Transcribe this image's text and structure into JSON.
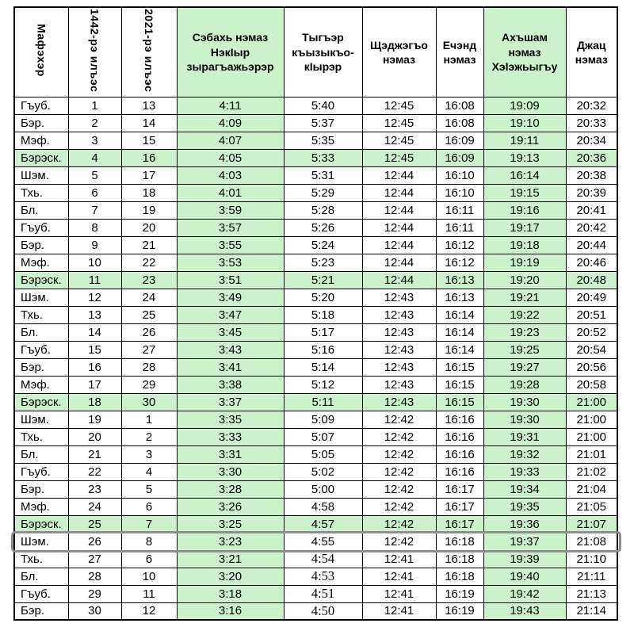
{
  "colors": {
    "highlight_green": "#ccf2cc",
    "row_outline_gray": "#8f8f8f",
    "table_border": "#000000"
  },
  "table": {
    "columns": [
      {
        "id": "day",
        "label": "Мафэхэр",
        "vertical": true,
        "green": false
      },
      {
        "id": "hijri",
        "label": "1442-рэ илъэс",
        "vertical": true,
        "green": false
      },
      {
        "id": "greg",
        "label": "2021-рэ илъэс",
        "vertical": true,
        "green": false
      },
      {
        "id": "fajr",
        "label": "Сэбахь нэмаз\nНэкIыр\nзырагъажьэрэр",
        "vertical": false,
        "green": true
      },
      {
        "id": "sunrise",
        "label": "Тыгъэр\nкъызыкъо-\nкIырэр",
        "vertical": false,
        "green": false
      },
      {
        "id": "dhuhr",
        "label": "Щэджэгъо\nнэмаз",
        "vertical": false,
        "green": false
      },
      {
        "id": "asr",
        "label": "Ечэнд\nнэмаз",
        "vertical": false,
        "green": false
      },
      {
        "id": "maghrib",
        "label": "Ахъшам\nнэмаз\nХэIэжьыгъу",
        "vertical": false,
        "green": true
      },
      {
        "id": "isha",
        "label": "Джац\nнэмаз",
        "vertical": false,
        "green": false
      }
    ],
    "rows": [
      [
        "Гъуб.",
        "1",
        "13",
        "4:11",
        "5:40",
        "12:45",
        "16:08",
        "19:09",
        "20:32"
      ],
      [
        "Бэр.",
        "2",
        "14",
        "4:09",
        "5:37",
        "12:45",
        "16:08",
        "19:10",
        "20:33"
      ],
      [
        "Мэф.",
        "3",
        "15",
        "4:07",
        "5:35",
        "12:45",
        "16:09",
        "19:11",
        "20:34"
      ],
      [
        "Бэрэск.",
        "4",
        "16",
        "4:05",
        "5:33",
        "12:45",
        "16:09",
        "19:13",
        "20:36"
      ],
      [
        "Шэм.",
        "5",
        "17",
        "4:03",
        "5:31",
        "12:44",
        "16:10",
        "16:14",
        "20:38"
      ],
      [
        "Тхь.",
        "6",
        "18",
        "4:01",
        "5:29",
        "12:44",
        "16:10",
        "19:15",
        "20:39"
      ],
      [
        "Бл.",
        "7",
        "19",
        "3:59",
        "5:28",
        "12:44",
        "16:11",
        "19:16",
        "20:41"
      ],
      [
        "Гъуб.",
        "8",
        "20",
        "3:57",
        "5:26",
        "12:44",
        "16:11",
        "19:17",
        "20:42"
      ],
      [
        "Бэр.",
        "9",
        "21",
        "3:55",
        "5:24",
        "12:44",
        "16:12",
        "19:18",
        "20:44"
      ],
      [
        "Мэф.",
        "10",
        "22",
        "3:53",
        "5:23",
        "12:44",
        "16:12",
        "19:19",
        "20:46"
      ],
      [
        "Бэрэск.",
        "11",
        "23",
        "3:51",
        "5:21",
        "12:44",
        "16:13",
        "19:20",
        "20:48"
      ],
      [
        "Шэм.",
        "12",
        "24",
        "3:49",
        "5:20",
        "12:43",
        "16:13",
        "19:21",
        "20:49"
      ],
      [
        "Тхь.",
        "13",
        "25",
        "3:47",
        "5:18",
        "12:43",
        "16:14",
        "19:22",
        "20:51"
      ],
      [
        "Бл.",
        "14",
        "26",
        "3:45",
        "5:17",
        "12:43",
        "16:14",
        "19:23",
        "20:52"
      ],
      [
        "Гъуб.",
        "15",
        "27",
        "3:43",
        "5:16",
        "12:43",
        "16:14",
        "19:25",
        "20:54"
      ],
      [
        "Бэр.",
        "16",
        "28",
        "3:41",
        "5:14",
        "12:43",
        "16:15",
        "19:27",
        "20:56"
      ],
      [
        "Мэф.",
        "17",
        "29",
        "3:38",
        "5:12",
        "12:43",
        "16:15",
        "19:28",
        "20:58"
      ],
      [
        "Бэрэск.",
        "18",
        "30",
        "3:37",
        "5:11",
        "12:43",
        "16:15",
        "19:30",
        "21:00"
      ],
      [
        "Шэм.",
        "19",
        "1",
        "3:35",
        "5:09",
        "12:42",
        "16:16",
        "19:30",
        "21:00"
      ],
      [
        "Тхь.",
        "20",
        "2",
        "3:33",
        "5:07",
        "12:42",
        "16:16",
        "19:31",
        "21:00"
      ],
      [
        "Бл.",
        "21",
        "3",
        "3:31",
        "5:05",
        "12:42",
        "16:16",
        "19:32",
        "21:01"
      ],
      [
        "Гъуб.",
        "22",
        "4",
        "3:30",
        "5:02",
        "12:42",
        "16:16",
        "19:33",
        "21:02"
      ],
      [
        "Бэр.",
        "23",
        "5",
        "3:28",
        "5:00",
        "12:42",
        "16:17",
        "19:34",
        "21:04"
      ],
      [
        "Мэф.",
        "24",
        "6",
        "3:26",
        "4:58",
        "12:42",
        "16:17",
        "19:35",
        "21:05"
      ],
      [
        "Бэрэск.",
        "25",
        "7",
        "3:25",
        "4:57",
        "12:42",
        "16:17",
        "19:36",
        "21:07"
      ],
      [
        "Шэм.",
        "26",
        "8",
        "3:23",
        "4:55",
        "12:42",
        "16:18",
        "19:37",
        "21:08"
      ],
      [
        "Тхь.",
        "27",
        "6",
        "3:21",
        "4:54",
        "12:41",
        "16:18",
        "19:39",
        "21:10"
      ],
      [
        "Бл.",
        "28",
        "10",
        "3:20",
        "4:53",
        "12:41",
        "16:18",
        "19:40",
        "21:11"
      ],
      [
        "Гъуб.",
        "29",
        "11",
        "3:18",
        "4:51",
        "12:41",
        "16:19",
        "19:42",
        "21:13"
      ],
      [
        "Бэр.",
        "30",
        "12",
        "3:16",
        "4:50",
        "12:41",
        "16:19",
        "19:43",
        "21:14"
      ]
    ],
    "friday_row_indexes": [
      3,
      10,
      17,
      24
    ],
    "highlighted_row_index": 25,
    "serif_sunrise_row_indexes": [
      26,
      27,
      28,
      29
    ]
  }
}
